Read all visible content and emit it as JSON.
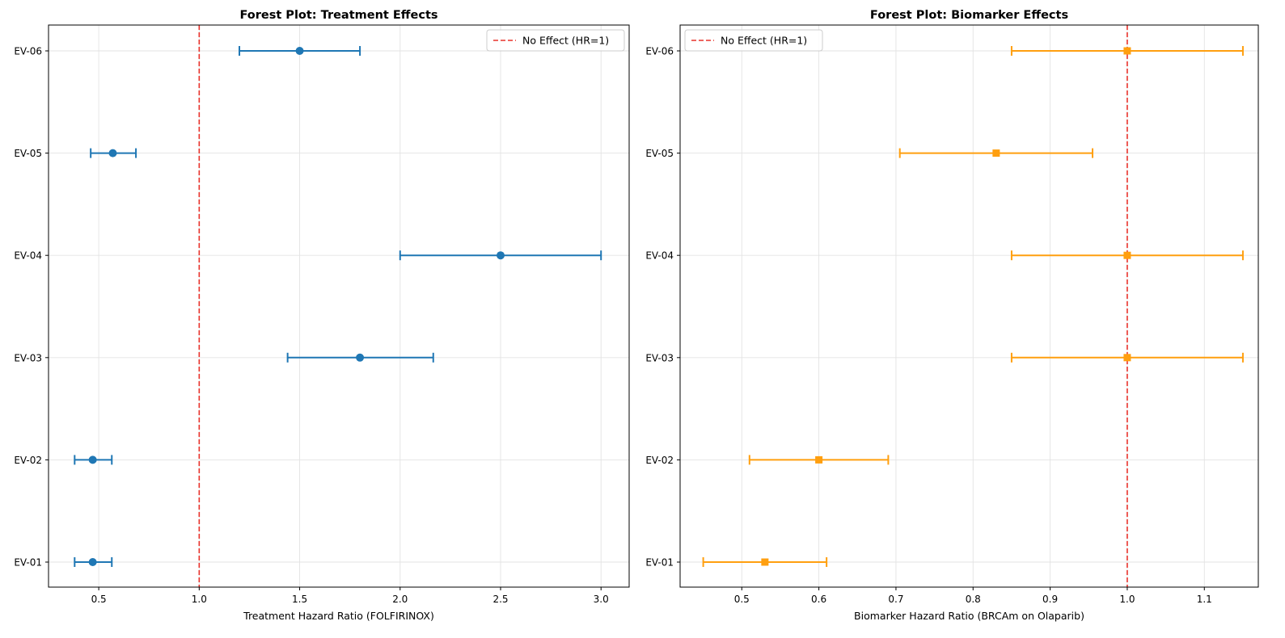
{
  "chart_data": [
    {
      "type": "forest",
      "title": "Forest Plot: Treatment Effects",
      "xlabel": "Treatment Hazard Ratio (FOLFIRINOX)",
      "ylabel": "",
      "xlim": [
        0.25,
        3.14
      ],
      "x_ticks": [
        0.5,
        1.0,
        1.5,
        2.0,
        2.5,
        3.0
      ],
      "x_tick_labels": [
        "0.5",
        "1.0",
        "1.5",
        "2.0",
        "2.5",
        "3.0"
      ],
      "categories": [
        "EV-01",
        "EV-02",
        "EV-03",
        "EV-04",
        "EV-05",
        "EV-06"
      ],
      "estimates": [
        0.47,
        0.47,
        1.8,
        2.5,
        0.57,
        1.5
      ],
      "ci_low": [
        0.38,
        0.38,
        1.44,
        2.0,
        0.46,
        1.2
      ],
      "ci_high": [
        0.565,
        0.565,
        2.165,
        3.0,
        0.685,
        1.8
      ],
      "color": "#1f77b4",
      "marker": "circle",
      "reference_line": {
        "value": 1.0,
        "label": "No Effect (HR=1)",
        "color": "#e8322b"
      },
      "legend_position": "upper-right",
      "grid": true
    },
    {
      "type": "forest",
      "title": "Forest Plot: Biomarker Effects",
      "xlabel": "Biomarker Hazard Ratio (BRCAm on Olaparib)",
      "ylabel": "",
      "xlim": [
        0.42,
        1.17
      ],
      "x_ticks": [
        0.5,
        0.6,
        0.7,
        0.8,
        0.9,
        1.0,
        1.1
      ],
      "x_tick_labels": [
        "0.5",
        "0.6",
        "0.7",
        "0.8",
        "0.9",
        "1.0",
        "1.1"
      ],
      "categories": [
        "EV-01",
        "EV-02",
        "EV-03",
        "EV-04",
        "EV-05",
        "EV-06"
      ],
      "estimates": [
        0.53,
        0.6,
        1.0,
        1.0,
        0.83,
        1.0
      ],
      "ci_low": [
        0.45,
        0.51,
        0.85,
        0.85,
        0.705,
        0.85
      ],
      "ci_high": [
        0.61,
        0.69,
        1.15,
        1.15,
        0.955,
        1.15
      ],
      "color": "#ff9f0f",
      "marker": "square",
      "reference_line": {
        "value": 1.0,
        "label": "No Effect (HR=1)",
        "color": "#e8322b"
      },
      "legend_position": "upper-left",
      "grid": true
    }
  ]
}
